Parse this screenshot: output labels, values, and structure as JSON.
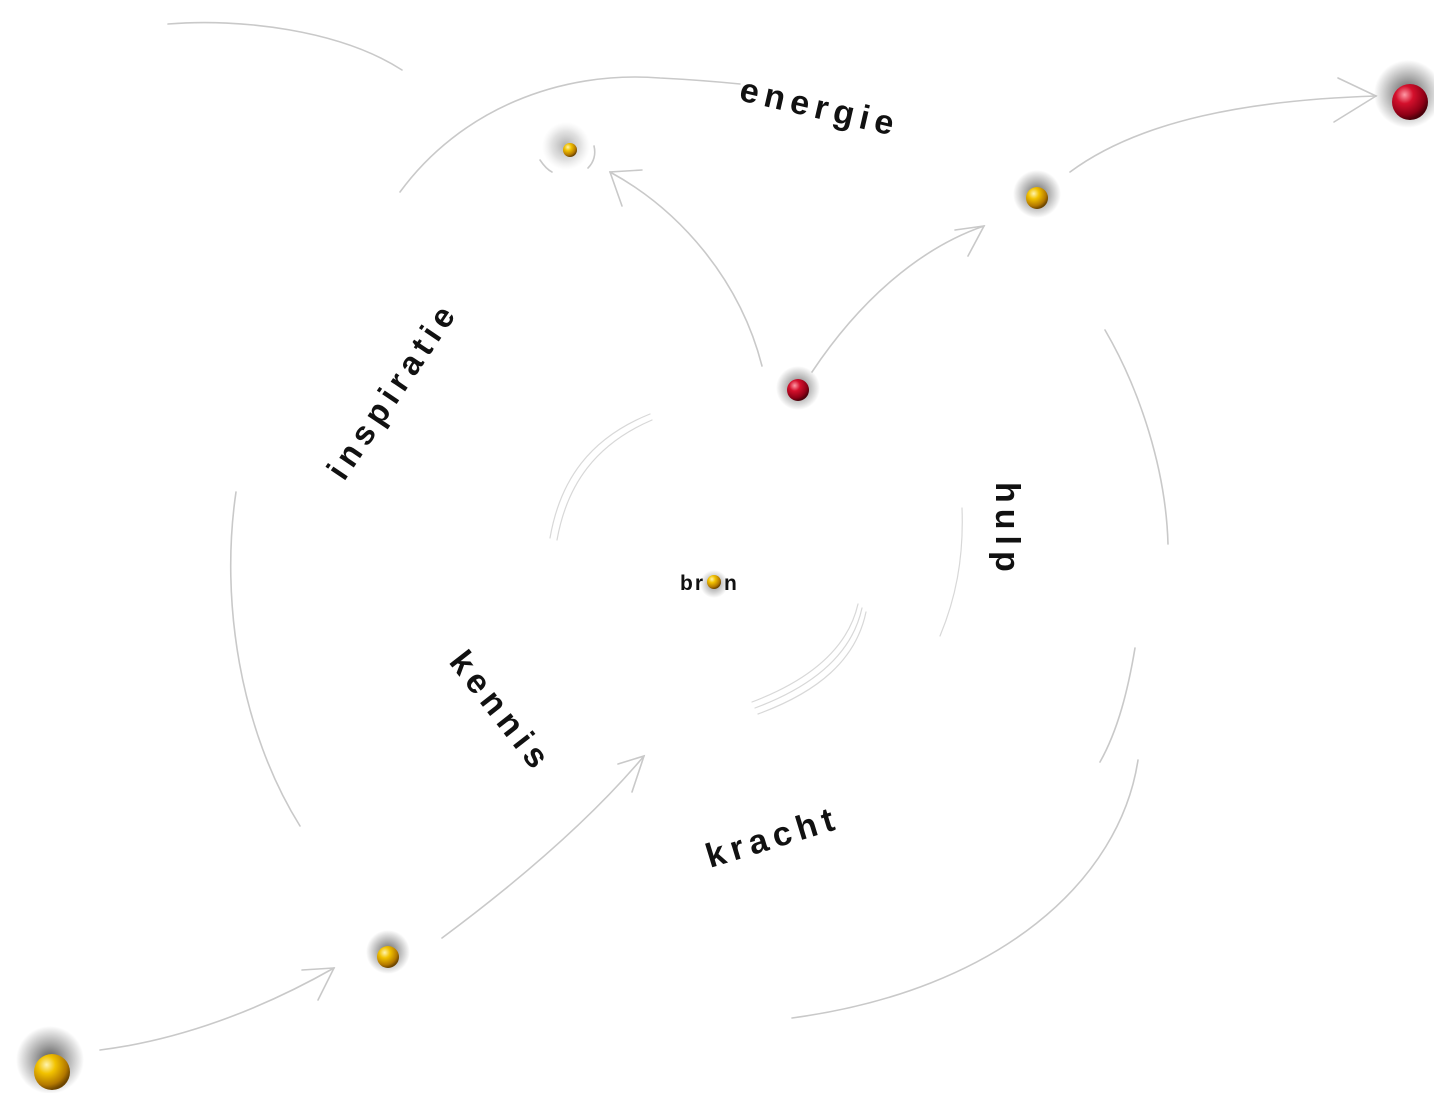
{
  "labels": {
    "energie": "energie",
    "inspiratie": "inspiratie",
    "hulp": "hulp",
    "kennis": "kennis",
    "kracht": "kracht",
    "bron_left": "br",
    "bron_right": "n"
  },
  "colors": {
    "gold": "#e8a800",
    "red": "#c0001c",
    "stroke": "#c9c9c9",
    "text": "#111111"
  }
}
